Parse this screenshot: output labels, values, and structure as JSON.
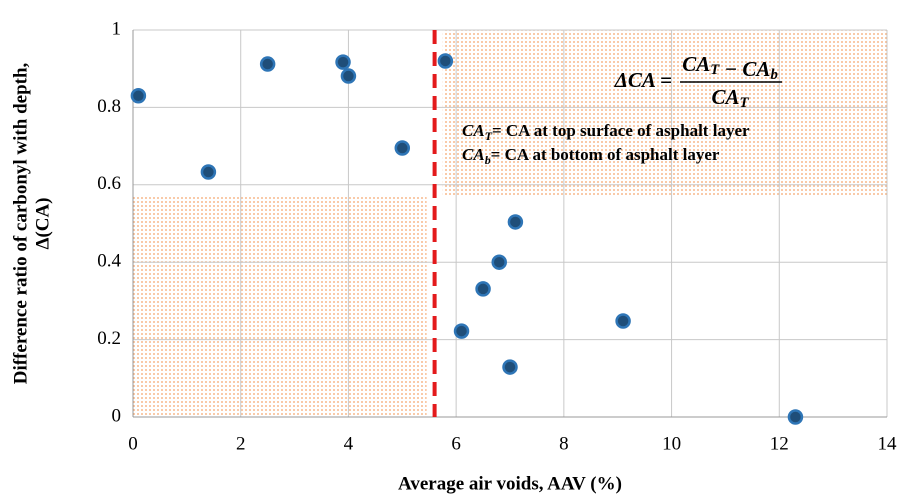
{
  "chart_data": {
    "type": "scatter",
    "xlabel": "Average air voids, AAV (%)",
    "ylabel": [
      "Difference ratio of carbonyl with depth,",
      "Δ(CA)"
    ],
    "x": [
      0.1,
      1.4,
      2.5,
      3.9,
      4.0,
      5.0,
      5.8,
      7.1,
      6.8,
      6.5,
      6.1,
      7.0,
      9.1,
      12.3
    ],
    "values": [
      0.83,
      0.633,
      0.912,
      0.917,
      0.881,
      0.695,
      0.92,
      0.504,
      0.4,
      0.331,
      0.222,
      0.129,
      0.248,
      0
    ],
    "color": "#1f4e79",
    "edge_color": "#2e75b6",
    "xlim": [
      0,
      14
    ],
    "ylim": [
      0,
      1
    ],
    "xticks": [
      0,
      2,
      4,
      6,
      8,
      10,
      12,
      14
    ],
    "yticks": [
      0,
      0.2,
      0.4,
      0.6,
      0.8,
      1
    ],
    "grid": true,
    "reference_line_x": 5.6,
    "reference_line_color": "#e31a1c",
    "shaded_regions": [
      {
        "xlim": [
          0,
          5.45
        ],
        "ylim": [
          0,
          0.57
        ]
      },
      {
        "xlim": [
          5.75,
          14
        ],
        "ylim": [
          0.57,
          1
        ]
      }
    ],
    "equation": {
      "lhs": "ΔCA =",
      "numerator": [
        [
          "CA",
          "T"
        ],
        [
          " − CA",
          "b"
        ]
      ],
      "denominator": [
        [
          "CA",
          "T"
        ]
      ]
    },
    "definitions": [
      {
        "symbol": [
          "CA",
          "T"
        ],
        "text": "= CA at top surface of asphalt layer"
      },
      {
        "symbol": [
          "CA",
          "b"
        ],
        "text": "= CA at bottom of asphalt layer"
      }
    ]
  }
}
